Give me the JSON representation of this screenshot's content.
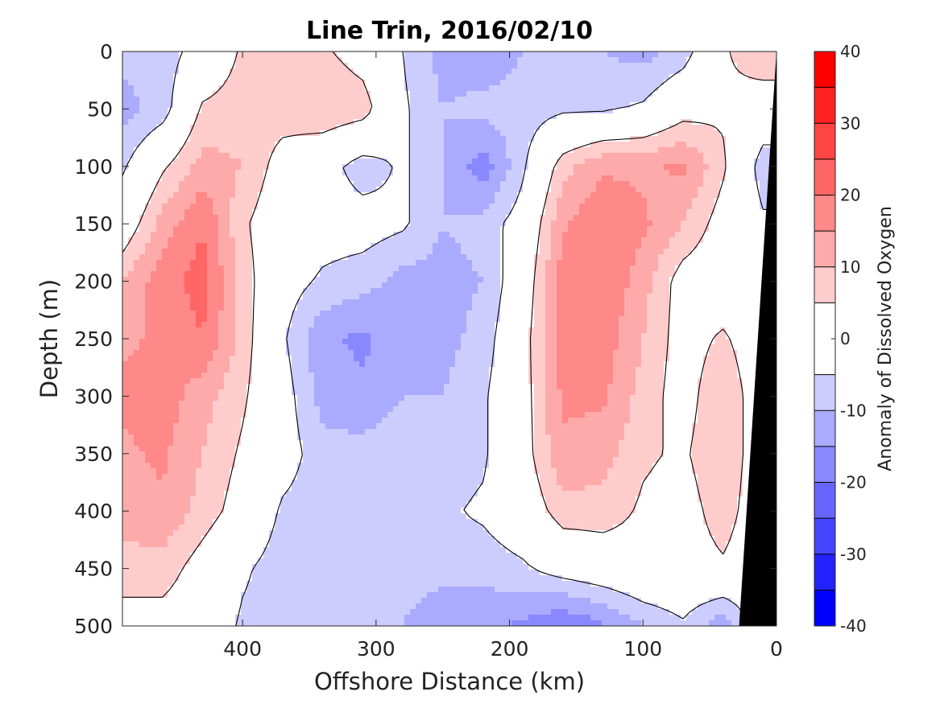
{
  "chart_data": {
    "type": "heatmap",
    "title": "Line Trin, 2016/02/10",
    "xlabel": "Offshore Distance (km)",
    "ylabel": "Depth (m)",
    "colorbar_label": "Anomaly of Dissolved Oxygen",
    "xlim": [
      490,
      0
    ],
    "ylim": [
      0,
      500
    ],
    "y_reversed": true,
    "x_reversed": true,
    "xticks": [
      400,
      300,
      200,
      100,
      0
    ],
    "yticks": [
      0,
      50,
      100,
      150,
      200,
      250,
      300,
      350,
      400,
      450,
      500
    ],
    "colorbar": {
      "range": [
        -40,
        40
      ],
      "ticks": [
        40,
        30,
        20,
        10,
        0,
        -10,
        -20,
        -30,
        -40
      ],
      "levels": [
        -40,
        -35,
        -30,
        -25,
        -20,
        -15,
        -10,
        -5,
        5,
        10,
        15,
        20,
        25,
        30,
        35,
        40
      ],
      "colors": [
        "#0000ff",
        "#2222ff",
        "#4444ff",
        "#6666ff",
        "#8888ff",
        "#aaaaff",
        "#ccccff",
        "#ffffff",
        "#ffcccc",
        "#ffaaaa",
        "#ff8888",
        "#ff6666",
        "#ff4444",
        "#ff2222",
        "#ff0000"
      ]
    },
    "field": {
      "x": [
        490,
        460,
        430,
        400,
        370,
        340,
        310,
        280,
        250,
        220,
        190,
        160,
        130,
        100,
        70,
        40,
        10
      ],
      "y": [
        0,
        50,
        100,
        150,
        200,
        250,
        300,
        350,
        400,
        450,
        500
      ],
      "z": [
        [
          -8,
          -8,
          -2,
          6,
          8,
          6,
          2,
          -5,
          -12,
          -14,
          -10,
          -8,
          -10,
          -12,
          -8,
          4,
          10
        ],
        [
          -12,
          -8,
          6,
          8,
          8,
          10,
          8,
          -4,
          -10,
          -8,
          -8,
          -6,
          -6,
          -4,
          2,
          4,
          0
        ],
        [
          -6,
          4,
          12,
          10,
          2,
          -2,
          -8,
          -4,
          -10,
          -18,
          -6,
          8,
          14,
          14,
          16,
          6,
          -8
        ],
        [
          0,
          12,
          20,
          6,
          0,
          -2,
          -2,
          -4,
          -10,
          -8,
          -2,
          14,
          20,
          16,
          10,
          2,
          -4
        ],
        [
          10,
          18,
          22,
          8,
          -2,
          -6,
          -8,
          -12,
          -12,
          -10,
          0,
          18,
          20,
          12,
          2,
          0,
          -2
        ],
        [
          14,
          16,
          20,
          8,
          -4,
          -14,
          -16,
          -12,
          -12,
          -8,
          2,
          18,
          18,
          10,
          2,
          6,
          0
        ],
        [
          16,
          18,
          12,
          6,
          -2,
          -12,
          -14,
          -10,
          -10,
          -6,
          2,
          16,
          16,
          8,
          2,
          10,
          0
        ],
        [
          14,
          16,
          10,
          4,
          -2,
          -8,
          -8,
          -6,
          -8,
          -6,
          2,
          14,
          12,
          6,
          4,
          10,
          0
        ],
        [
          12,
          14,
          8,
          2,
          -6,
          -8,
          -6,
          -6,
          -6,
          -4,
          0,
          8,
          8,
          4,
          2,
          8,
          0
        ],
        [
          8,
          8,
          2,
          -4,
          -8,
          -6,
          -6,
          -8,
          -8,
          -8,
          -6,
          -2,
          0,
          2,
          2,
          4,
          0
        ],
        [
          2,
          2,
          0,
          -6,
          -8,
          -6,
          -6,
          -10,
          -14,
          -14,
          -16,
          -20,
          -16,
          -10,
          -6,
          -14,
          0
        ]
      ]
    },
    "land_mask": {
      "surface_x": 0,
      "bottom_x": 28,
      "color": "#000000"
    }
  }
}
